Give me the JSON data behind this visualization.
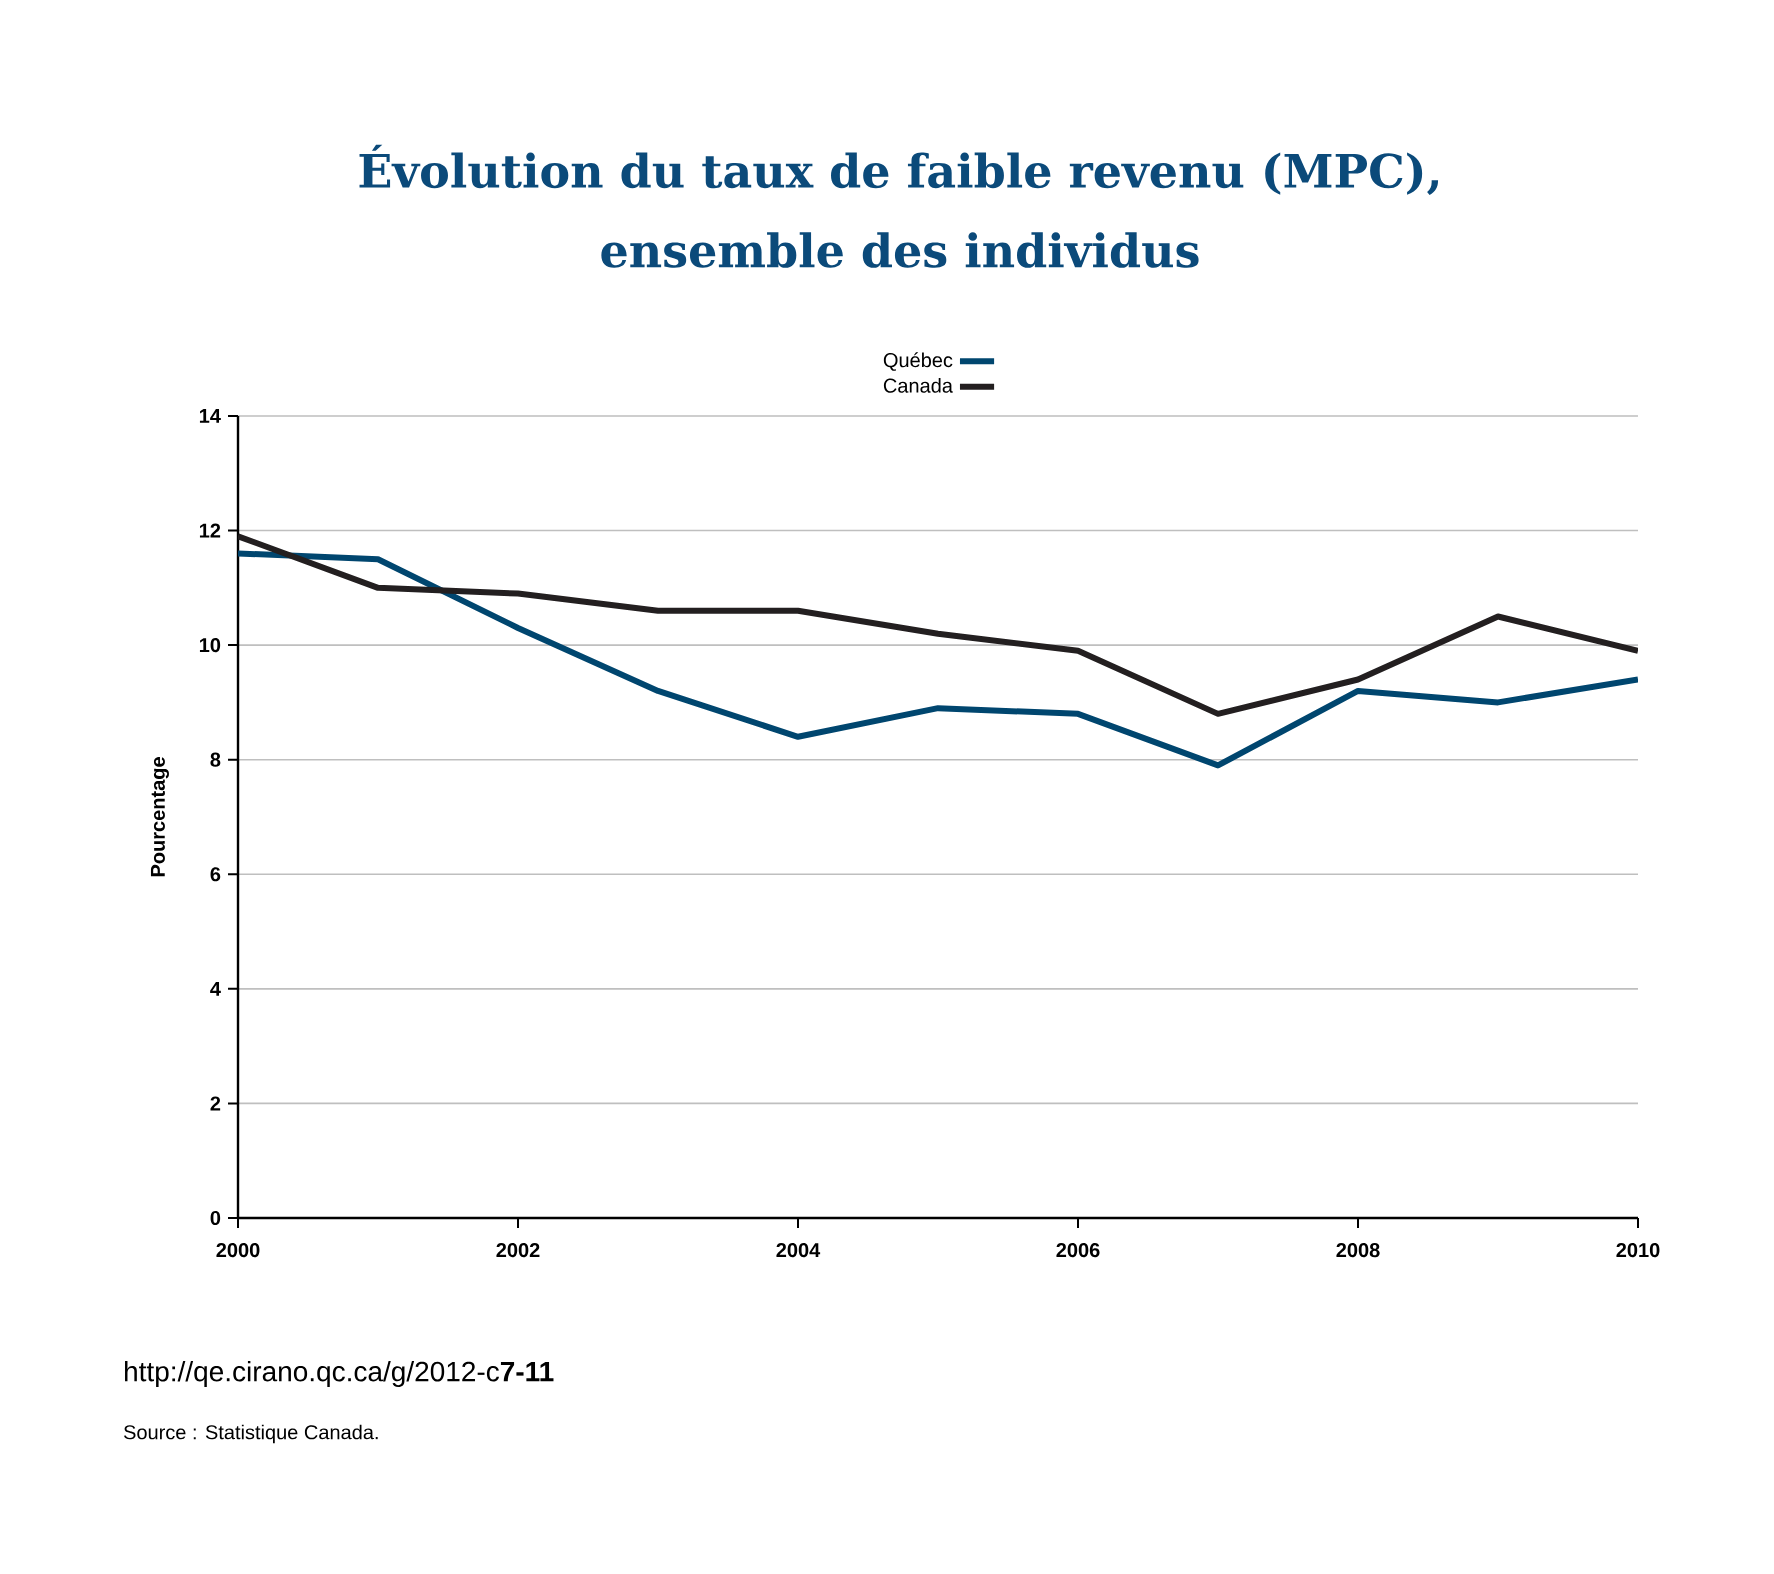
{
  "chart_data": {
    "type": "line",
    "title": "Évolution du taux de faible revenu (MPC),",
    "subtitle": "ensemble des individus",
    "ylabel": "Pourcentage",
    "x": [
      2000,
      2001,
      2002,
      2003,
      2004,
      2005,
      2006,
      2007,
      2008,
      2009,
      2010
    ],
    "series": [
      {
        "name": "Québec",
        "color": "#00466f",
        "values": [
          11.6,
          11.5,
          10.3,
          9.2,
          8.4,
          8.9,
          8.8,
          7.9,
          9.2,
          9.0,
          9.4
        ]
      },
      {
        "name": "Canada",
        "color": "#231f20",
        "values": [
          11.9,
          11.0,
          10.9,
          10.6,
          10.6,
          10.2,
          9.9,
          8.8,
          9.4,
          10.5,
          9.9
        ]
      }
    ],
    "xlim": [
      2000,
      2010
    ],
    "xticks": [
      2000,
      2002,
      2004,
      2006,
      2008,
      2010
    ],
    "ylim": [
      0,
      14
    ],
    "yticks": [
      0,
      2,
      4,
      6,
      8,
      10,
      12,
      14
    ],
    "grid": "y",
    "legend": "top",
    "annotations": [
      "http://qe.cirano.qc.ca/g/2012-c**7-11**",
      "Source : Statistique Canada."
    ]
  }
}
